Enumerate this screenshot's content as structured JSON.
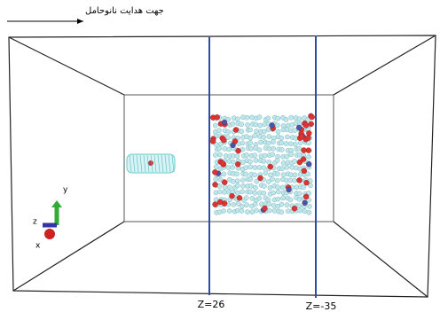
{
  "direction_label": "جهت هدایت نانوحامل",
  "planes": [
    {
      "label": "Z=26"
    },
    {
      "label": "Z=-35"
    }
  ],
  "axes": {
    "y": "y",
    "z": "z",
    "x": "x"
  }
}
